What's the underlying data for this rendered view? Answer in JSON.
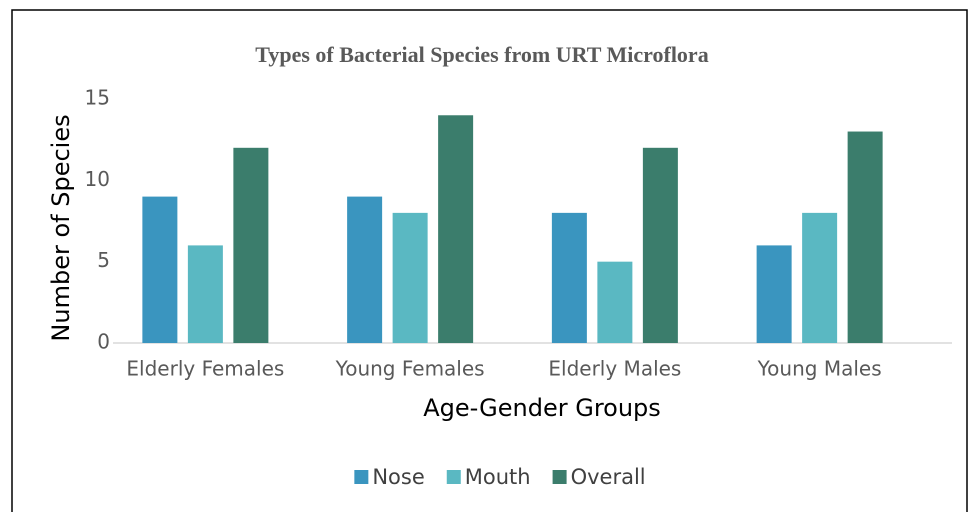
{
  "chart_data": {
    "type": "bar",
    "title": "Types of Bacterial Species from URT Microflora",
    "x_label": "Age-Gender Groups",
    "y_label": "Number of Species",
    "categories": [
      "Elderly Females",
      "Young Females",
      "Elderly Males",
      "Young Males"
    ],
    "series": [
      {
        "name": "Nose",
        "color": "#3a95bf",
        "values": [
          9,
          9,
          8,
          6
        ]
      },
      {
        "name": "Mouth",
        "color": "#5ab8c2",
        "values": [
          6,
          8,
          5,
          8
        ]
      },
      {
        "name": "Overall",
        "color": "#3b7d6c",
        "values": [
          12,
          14,
          12,
          13
        ]
      }
    ],
    "ylim": [
      0,
      15
    ],
    "yticks": [
      0,
      5,
      10,
      15
    ],
    "grid": false,
    "legend": "bottom"
  }
}
